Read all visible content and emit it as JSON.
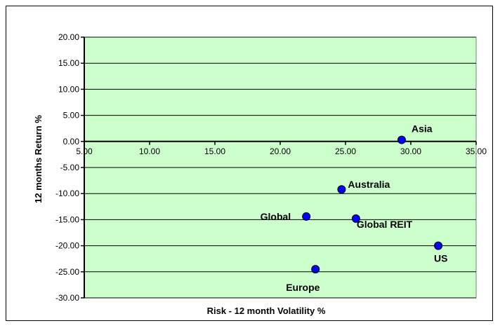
{
  "chart_data": {
    "type": "scatter",
    "title": "",
    "xlabel": "Risk - 12 month Volatility %",
    "ylabel": "12 months Return  %",
    "xlim": [
      5,
      35
    ],
    "ylim": [
      -30,
      20
    ],
    "x_ticks": [
      "5.00",
      "10.00",
      "15.00",
      "20.00",
      "25.00",
      "30.00",
      "35.00"
    ],
    "y_ticks": [
      "20.00",
      "15.00",
      "10.00",
      "5.00",
      "0.00",
      "-5.00",
      "-10.00",
      "-15.00",
      "-20.00",
      "-25.00",
      "-30.00"
    ],
    "grid": "horizontal",
    "plot_background": "#ccffcc",
    "marker_color": "#0000ff",
    "points": [
      {
        "label": "Asia",
        "x": 29.3,
        "y": 0.3
      },
      {
        "label": "Australia",
        "x": 24.7,
        "y": -9.2
      },
      {
        "label": "Global",
        "x": 22.0,
        "y": -14.4
      },
      {
        "label": "Global REIT",
        "x": 25.8,
        "y": -14.8
      },
      {
        "label": "US",
        "x": 32.1,
        "y": -20.0
      },
      {
        "label": "Europe",
        "x": 22.7,
        "y": -24.5
      }
    ]
  }
}
